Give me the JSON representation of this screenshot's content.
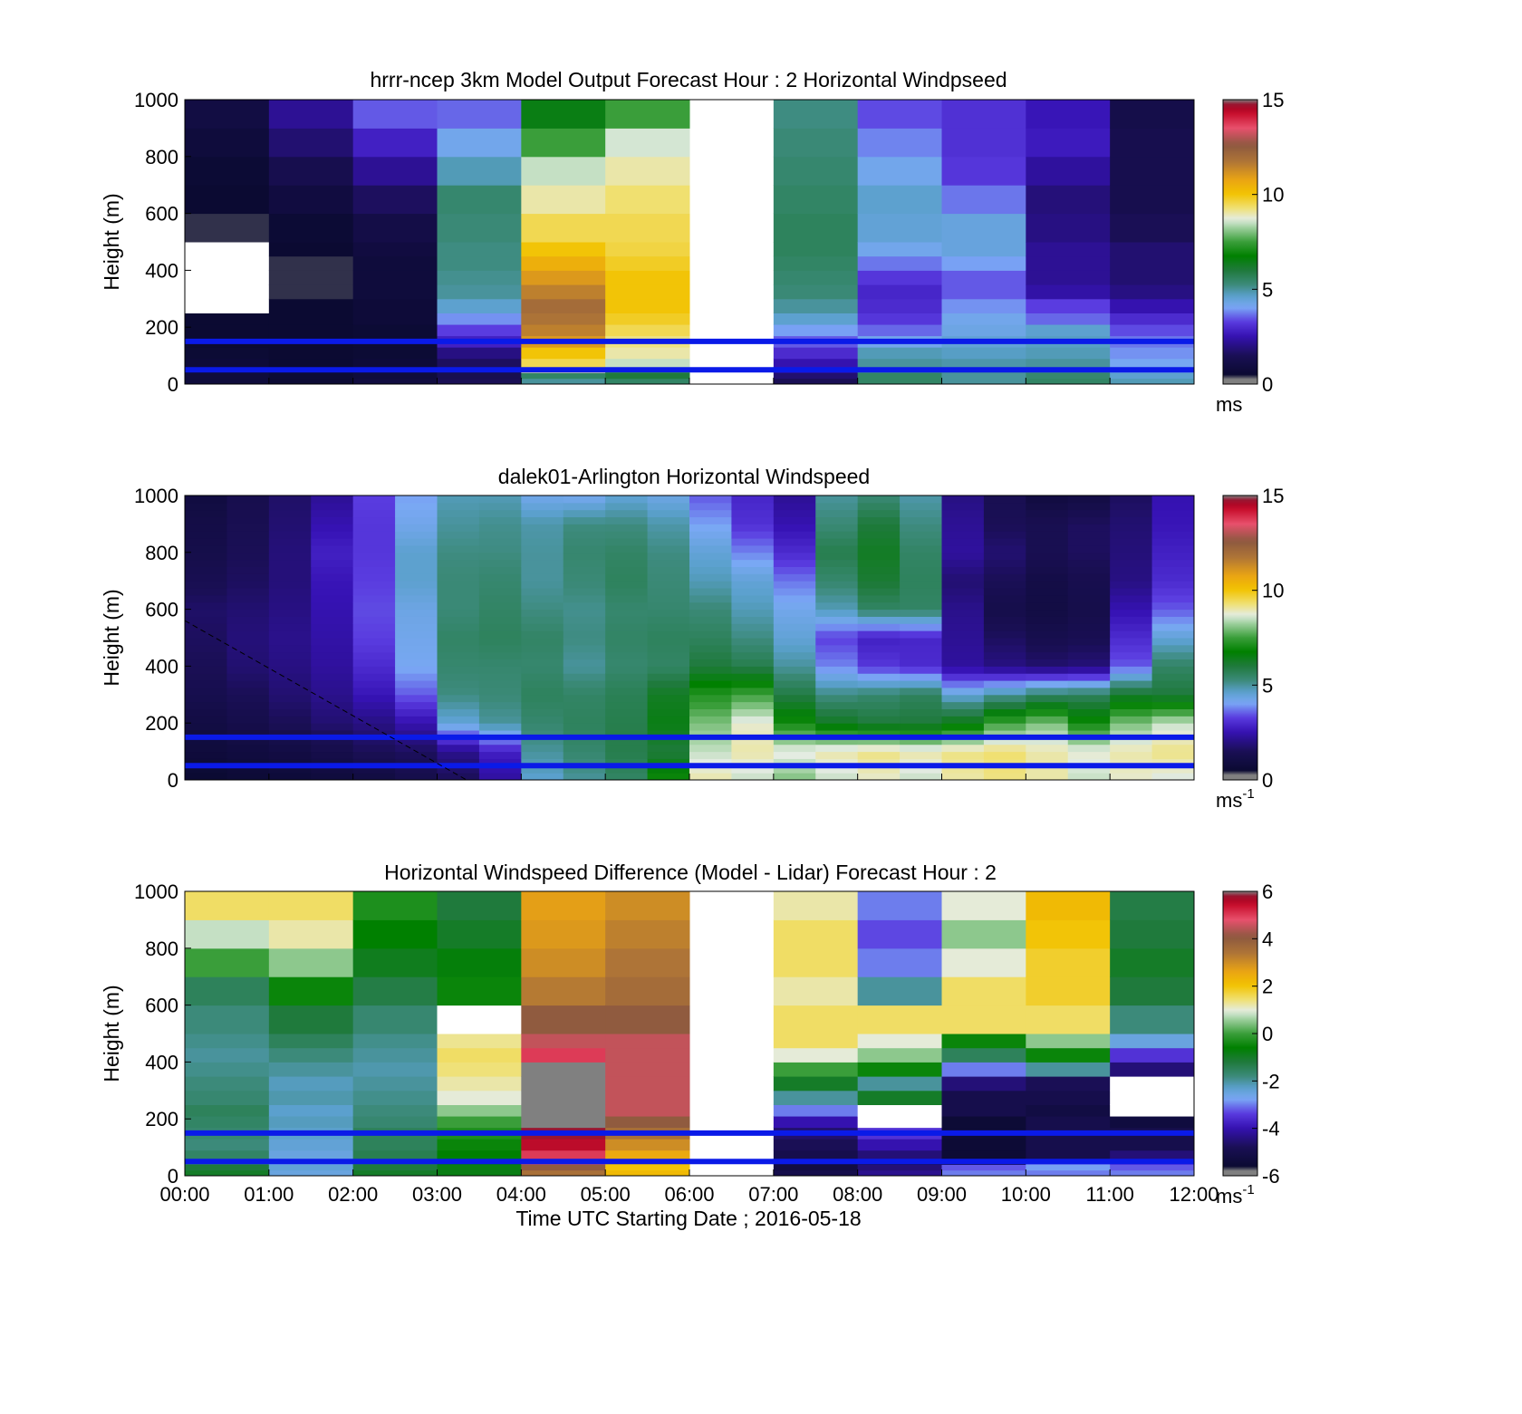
{
  "chart_data": [
    {
      "type": "heatmap",
      "title": "hrrr-ncep 3km Model Output   Forecast Hour : 2 Horizontal Windpseed",
      "xlabel": "",
      "ylabel": "Height (m)",
      "xlim": [
        0,
        12
      ],
      "ylim": [
        0,
        1000
      ],
      "yticks": [
        0,
        200,
        400,
        600,
        800,
        1000
      ],
      "colorbar": {
        "min": 0,
        "max": 15,
        "ticks": [
          0,
          5,
          10,
          15
        ],
        "unit": "ms",
        "unit_sup": ""
      },
      "reference_lines_m": [
        50,
        150
      ],
      "hours": [
        0,
        1,
        2,
        3,
        4,
        5,
        6,
        7,
        8,
        9,
        10,
        11
      ],
      "level_tops_m": [
        20,
        40,
        60,
        90,
        130,
        170,
        210,
        250,
        300,
        350,
        400,
        450,
        500,
        600,
        700,
        800,
        900,
        1000
      ],
      "columns": [
        [
          0.8,
          0.8,
          0.7,
          0.7,
          0.6,
          0.5,
          0.5,
          0.5,
          null,
          null,
          null,
          null,
          null,
          0.4,
          0.5,
          0.6,
          0.8,
          1.0
        ],
        [
          0.6,
          0.6,
          0.5,
          0.5,
          0.5,
          0.5,
          0.5,
          0.5,
          0.5,
          0.4,
          0.4,
          0.4,
          0.5,
          0.6,
          0.9,
          1.3,
          1.8,
          2.2
        ],
        [
          0.9,
          0.8,
          0.7,
          0.7,
          0.6,
          0.6,
          0.6,
          0.7,
          0.7,
          0.8,
          0.8,
          0.8,
          0.9,
          1.1,
          1.6,
          2.2,
          2.8,
          3.5
        ],
        [
          1.5,
          1.4,
          1.3,
          1.6,
          2.0,
          2.8,
          3.3,
          3.9,
          4.6,
          5.0,
          5.1,
          5.2,
          5.2,
          5.3,
          5.4,
          4.8,
          4.2,
          3.6
        ],
        [
          5.0,
          5.5,
          9.0,
          9.5,
          10.0,
          11.0,
          11.5,
          11.8,
          12.0,
          11.5,
          11.0,
          10.5,
          10.0,
          9.5,
          9.0,
          8.5,
          7.5,
          6.5
        ],
        [
          5.5,
          6.0,
          7.5,
          8.5,
          9.0,
          9.2,
          9.5,
          9.8,
          10.0,
          10.0,
          10.0,
          9.8,
          9.6,
          9.5,
          9.3,
          9.0,
          8.6,
          7.5
        ],
        [
          null,
          null,
          null,
          null,
          null,
          null,
          null,
          null,
          null,
          null,
          null,
          null,
          null,
          null,
          null,
          null,
          null,
          null
        ],
        [
          1.5,
          1.8,
          2.2,
          2.5,
          3.0,
          3.5,
          4.0,
          4.6,
          5.0,
          5.3,
          5.4,
          5.5,
          5.6,
          5.6,
          5.5,
          5.4,
          5.3,
          5.2
        ],
        [
          5.5,
          5.5,
          5.2,
          5.0,
          4.8,
          4.2,
          3.6,
          3.2,
          3.0,
          2.9,
          3.2,
          3.7,
          4.2,
          4.5,
          4.6,
          4.2,
          3.8,
          3.4
        ],
        [
          5.0,
          5.0,
          5.0,
          4.9,
          4.7,
          4.5,
          4.3,
          4.2,
          3.9,
          3.5,
          3.5,
          4.0,
          4.4,
          4.4,
          3.7,
          3.2,
          3.1,
          3.1
        ],
        [
          5.5,
          5.4,
          5.2,
          5.0,
          4.8,
          4.7,
          4.6,
          3.6,
          3.3,
          2.4,
          2.2,
          2.2,
          2.2,
          2.0,
          1.9,
          2.3,
          2.7,
          2.6
        ],
        [
          4.8,
          4.6,
          4.4,
          4.1,
          3.9,
          3.7,
          3.4,
          3.0,
          2.5,
          2.0,
          1.8,
          1.8,
          1.8,
          1.5,
          1.3,
          1.3,
          1.3,
          1.2
        ]
      ]
    },
    {
      "type": "heatmap",
      "title": "dalek01-Arlington  Horizontal Windspeed",
      "xlabel": "",
      "ylabel": "Height (m)",
      "xlim": [
        0,
        12
      ],
      "ylim": [
        0,
        1000
      ],
      "yticks": [
        0,
        200,
        400,
        600,
        800,
        1000
      ],
      "colorbar": {
        "min": 0,
        "max": 15,
        "ticks": [
          0,
          5,
          10,
          15
        ],
        "unit": "ms",
        "unit_sup": "-1"
      },
      "reference_lines_m": [
        50,
        150
      ],
      "diagonal_line": [
        [
          0,
          560
        ],
        [
          3.35,
          0
        ]
      ],
      "profile_times_h": [
        0.0,
        0.5,
        1.0,
        1.5,
        2.0,
        2.5,
        3.0,
        3.5,
        4.0,
        4.5,
        5.0,
        5.5,
        6.0,
        6.5,
        7.0,
        7.5,
        8.0,
        8.5,
        9.0,
        9.5,
        10.0,
        10.5,
        11.0,
        11.5
      ],
      "profile_heights_m": [
        0,
        100,
        200,
        300,
        400,
        500,
        600,
        700,
        800,
        900,
        1000
      ],
      "profiles": [
        [
          0.5,
          0.8,
          1.0,
          1.3,
          1.5,
          1.6,
          1.7,
          1.4,
          1.2,
          1.1,
          0.9
        ],
        [
          0.6,
          0.9,
          1.2,
          1.5,
          1.8,
          1.9,
          1.8,
          1.6,
          1.5,
          1.4,
          1.3
        ],
        [
          0.7,
          1.0,
          1.5,
          1.8,
          2.0,
          2.1,
          2.0,
          1.9,
          1.9,
          1.8,
          1.7
        ],
        [
          0.8,
          1.2,
          1.8,
          2.1,
          2.3,
          2.4,
          2.5,
          2.6,
          2.8,
          2.5,
          2.2
        ],
        [
          0.9,
          1.5,
          2.0,
          2.6,
          3.0,
          3.3,
          3.4,
          3.3,
          3.2,
          3.2,
          3.3
        ],
        [
          1.2,
          1.6,
          2.5,
          3.5,
          4.1,
          4.2,
          4.3,
          4.6,
          4.6,
          4.2,
          4.0
        ],
        [
          1.5,
          2.1,
          4.5,
          5.2,
          5.4,
          5.5,
          5.3,
          5.3,
          5.2,
          5.0,
          4.8
        ],
        [
          2.3,
          2.8,
          5.0,
          5.3,
          5.4,
          5.6,
          5.5,
          5.4,
          5.2,
          5.1,
          4.8
        ],
        [
          4.6,
          5.0,
          5.4,
          5.6,
          5.4,
          5.5,
          5.2,
          5.0,
          5.0,
          4.9,
          4.2
        ],
        [
          5.0,
          5.4,
          5.6,
          5.5,
          5.0,
          5.2,
          5.1,
          5.3,
          5.4,
          5.2,
          4.1
        ],
        [
          5.5,
          5.8,
          5.8,
          5.7,
          5.4,
          5.5,
          5.4,
          5.6,
          5.5,
          5.2,
          4.5
        ],
        [
          7.0,
          6.0,
          6.5,
          6.3,
          5.5,
          5.6,
          5.4,
          5.3,
          5.2,
          4.9,
          4.3
        ],
        [
          9.0,
          8.5,
          8.0,
          7.2,
          6.0,
          5.6,
          5.3,
          4.8,
          4.5,
          4.0,
          3.5
        ],
        [
          8.5,
          9.0,
          8.8,
          7.5,
          5.8,
          5.2,
          4.8,
          4.5,
          3.8,
          3.1,
          2.9
        ],
        [
          8.0,
          8.8,
          7.0,
          5.9,
          5.0,
          4.5,
          4.2,
          3.7,
          3.0,
          2.5,
          2.2
        ],
        [
          8.5,
          9.0,
          6.3,
          5.2,
          3.8,
          3.3,
          4.8,
          5.4,
          5.8,
          5.3,
          5.0
        ],
        [
          8.8,
          9.2,
          6.0,
          5.4,
          3.2,
          2.8,
          5.5,
          6.1,
          6.3,
          6.0,
          5.3
        ],
        [
          8.5,
          9.0,
          6.0,
          5.6,
          3.0,
          2.9,
          5.5,
          5.6,
          5.5,
          5.2,
          4.9
        ],
        [
          9.0,
          9.2,
          6.5,
          4.5,
          2.3,
          2.2,
          2.1,
          1.8,
          2.3,
          2.2,
          2.0
        ],
        [
          9.2,
          9.3,
          7.5,
          5.0,
          2.0,
          1.6,
          1.2,
          1.5,
          1.8,
          1.5,
          1.4
        ],
        [
          9.0,
          9.0,
          8.0,
          5.5,
          1.8,
          1.3,
          1.0,
          1.1,
          1.4,
          1.4,
          0.9
        ],
        [
          8.5,
          8.8,
          7.0,
          5.6,
          1.9,
          1.4,
          1.2,
          1.3,
          1.6,
          1.6,
          1.0
        ],
        [
          8.8,
          9.0,
          8.0,
          6.2,
          3.5,
          3.0,
          2.5,
          2.0,
          1.9,
          1.8,
          1.6
        ],
        [
          8.6,
          9.2,
          8.5,
          6.0,
          5.5,
          4.5,
          3.5,
          3.0,
          2.8,
          2.6,
          2.5
        ]
      ]
    },
    {
      "type": "heatmap",
      "title": "Horizontal Windspeed Difference (Model - Lidar) Forecast Hour : 2",
      "xlabel": "Time UTC  Starting Date ; 2016-05-18",
      "ylabel": "Height (m)",
      "xlim": [
        0,
        12
      ],
      "ylim": [
        0,
        1000
      ],
      "yticks": [
        0,
        200,
        400,
        600,
        800,
        1000
      ],
      "xtick_labels": [
        "00:00",
        "01:00",
        "02:00",
        "03:00",
        "04:00",
        "05:00",
        "06:00",
        "07:00",
        "08:00",
        "09:00",
        "10:00",
        "11:00",
        "12:00"
      ],
      "colorbar": {
        "min": -6,
        "max": 6,
        "ticks": [
          -6,
          -4,
          -2,
          0,
          2,
          4,
          6
        ],
        "unit": "ms",
        "unit_sup": "-1"
      },
      "reference_lines_m": [
        50,
        150
      ],
      "hours": [
        0,
        1,
        2,
        3,
        4,
        5,
        6,
        7,
        8,
        9,
        10,
        11
      ],
      "level_tops_m": [
        20,
        40,
        60,
        90,
        130,
        170,
        210,
        250,
        300,
        350,
        400,
        450,
        500,
        600,
        700,
        800,
        900,
        1000
      ],
      "columns": [
        [
          -1.0,
          -1.2,
          -1.5,
          -1.6,
          -1.8,
          -1.7,
          -1.6,
          -1.5,
          -1.7,
          -1.8,
          -1.9,
          -2.0,
          -1.9,
          -1.8,
          -1.5,
          0.0,
          0.8,
          1.5
        ],
        [
          -2.5,
          -2.4,
          -2.6,
          -2.5,
          -2.4,
          -2.3,
          -2.2,
          -2.3,
          -2.1,
          -2.2,
          -2.0,
          -1.8,
          -1.5,
          -1.2,
          -0.5,
          0.5,
          1.2,
          1.5
        ],
        [
          -1.0,
          -1.2,
          -1.3,
          -1.4,
          -1.5,
          -1.5,
          -1.7,
          -1.8,
          -1.9,
          -2.0,
          -2.1,
          -2.0,
          -1.9,
          -1.7,
          -1.3,
          -0.9,
          -0.6,
          -0.3
        ],
        [
          -0.8,
          -0.8,
          -0.7,
          -0.6,
          -0.5,
          -0.3,
          0.0,
          0.5,
          1.0,
          1.2,
          1.4,
          1.5,
          1.3,
          null,
          -0.5,
          -0.7,
          -1.0,
          -1.2
        ],
        [
          3.5,
          4.0,
          4.5,
          5.0,
          5.5,
          5.8,
          6.0,
          6.0,
          6.0,
          6.0,
          6.0,
          5.0,
          4.5,
          4.0,
          3.3,
          3.0,
          2.8,
          2.7
        ],
        [
          2.2,
          2.0,
          2.0,
          2.5,
          3.0,
          3.5,
          4.0,
          4.5,
          4.5,
          4.5,
          4.5,
          4.5,
          4.5,
          4.0,
          3.6,
          3.4,
          3.2,
          3.0
        ],
        [
          null,
          null,
          null,
          null,
          null,
          null,
          null,
          null,
          null,
          null,
          null,
          null,
          null,
          null,
          null,
          null,
          null,
          null
        ],
        [
          -5.0,
          -5.2,
          -5.3,
          -5.0,
          -4.8,
          -4.6,
          -4.0,
          -3.0,
          -2.0,
          -1.0,
          0.0,
          1.0,
          1.5,
          1.5,
          1.2,
          1.5,
          1.5,
          1.2
        ],
        [
          -4.3,
          -4.5,
          -4.8,
          -4.5,
          -4.0,
          -3.5,
          null,
          null,
          -1.0,
          -2.0,
          -0.5,
          0.5,
          1.0,
          1.5,
          -2.0,
          -3.0,
          -3.3,
          -3.0
        ],
        [
          -3.0,
          -3.2,
          -5.0,
          -5.5,
          -5.5,
          -5.5,
          -5.5,
          -5.0,
          -5.0,
          -4.5,
          -3.0,
          -1.5,
          -0.5,
          1.5,
          1.5,
          1.0,
          0.5,
          1.0
        ],
        [
          -3.0,
          -2.8,
          -3.0,
          -5.0,
          -5.0,
          -5.0,
          -5.0,
          -5.2,
          -5.0,
          -4.8,
          -2.0,
          -0.5,
          0.5,
          1.5,
          1.8,
          1.8,
          2.0,
          2.2
        ],
        [
          -3.0,
          -3.2,
          -3.4,
          -4.5,
          -5.0,
          -5.0,
          -5.3,
          null,
          null,
          null,
          -4.5,
          -3.5,
          -2.5,
          -1.8,
          -1.2,
          -1.0,
          -1.2,
          -1.3
        ]
      ]
    }
  ]
}
